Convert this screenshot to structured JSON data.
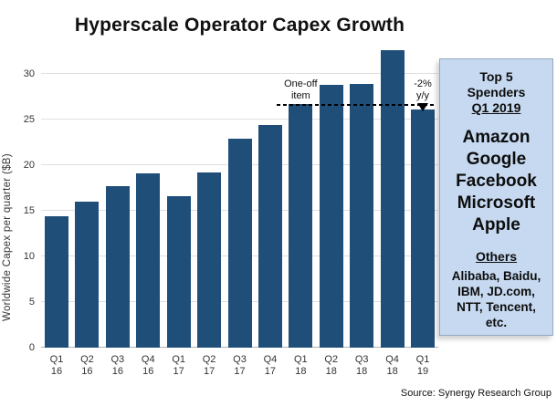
{
  "chart_data": {
    "type": "bar",
    "title": "Hyperscale Operator Capex Growth",
    "categories": [
      "Q1 16",
      "Q2 16",
      "Q3 16",
      "Q4 16",
      "Q1 17",
      "Q2 17",
      "Q3 17",
      "Q4 17",
      "Q1 18",
      "Q2 18",
      "Q3 18",
      "Q4 18",
      "Q1 19"
    ],
    "values": [
      14.4,
      16.0,
      17.7,
      19.1,
      16.6,
      19.2,
      22.9,
      24.4,
      26.7,
      28.8,
      28.9,
      32.6,
      26.1
    ],
    "ylabel": "Worldwide Capex per quarter ($B)",
    "xlabel": "",
    "yticks": [
      0,
      5,
      10,
      15,
      20,
      25,
      30
    ],
    "ylim": [
      0,
      33
    ],
    "grid": true,
    "legend_position": "none",
    "bar_color": "#1F4E79",
    "reference_line": {
      "value": 26.7,
      "style": "dashed",
      "from_category": "Q1 18",
      "to_category": "Q1 19"
    },
    "annotations": [
      {
        "line1": "One-off",
        "line2": "item",
        "target_category": "Q1 18"
      },
      {
        "line1": "-2%",
        "line2": "y/y",
        "target_category": "Q1 19",
        "marker": "down-arrow"
      }
    ]
  },
  "side_panel": {
    "background": "#c6d9f0",
    "heading_line1": "Top 5",
    "heading_line2": "Spenders",
    "heading_line3": "Q1 2019",
    "top_spenders": [
      "Amazon",
      "Google",
      "Facebook",
      "Microsoft",
      "Apple"
    ],
    "others_heading": "Others",
    "others_text": "Alibaba, Baidu, IBM, JD.com, NTT, Tencent, etc."
  },
  "source": "Source: Synergy Research Group"
}
